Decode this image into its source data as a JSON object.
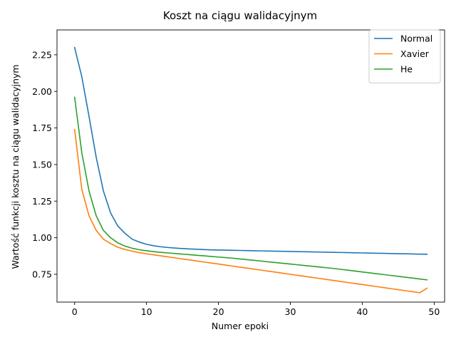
{
  "chart_data": {
    "type": "line",
    "title": "Koszt na ciągu walidacyjnym",
    "xlabel": "Numer epoki",
    "ylabel": "Wartość funkcji kosztu na ciągu walidacyjnym",
    "xlim": [
      -2.45,
      51.45
    ],
    "ylim": [
      0.56,
      2.42
    ],
    "xticks": [
      0,
      10,
      20,
      30,
      40,
      50
    ],
    "yticks": [
      0.75,
      1.0,
      1.25,
      1.5,
      1.75,
      2.0,
      2.25
    ],
    "grid": false,
    "legend_position": "upper right",
    "x": [
      0,
      1,
      2,
      3,
      4,
      5,
      6,
      7,
      8,
      9,
      10,
      11,
      12,
      13,
      14,
      15,
      16,
      17,
      18,
      19,
      20,
      21,
      22,
      23,
      24,
      25,
      26,
      27,
      28,
      29,
      30,
      31,
      32,
      33,
      34,
      35,
      36,
      37,
      38,
      39,
      40,
      41,
      42,
      43,
      44,
      45,
      46,
      47,
      48,
      49
    ],
    "series": [
      {
        "name": "Normal",
        "color": "#1f77b4",
        "values": [
          2.3,
          2.1,
          1.83,
          1.55,
          1.32,
          1.17,
          1.08,
          1.03,
          0.99,
          0.97,
          0.955,
          0.945,
          0.938,
          0.933,
          0.929,
          0.926,
          0.923,
          0.921,
          0.919,
          0.917,
          0.916,
          0.915,
          0.914,
          0.913,
          0.912,
          0.911,
          0.91,
          0.909,
          0.908,
          0.907,
          0.906,
          0.905,
          0.904,
          0.903,
          0.902,
          0.901,
          0.9,
          0.899,
          0.898,
          0.897,
          0.896,
          0.895,
          0.894,
          0.893,
          0.892,
          0.891,
          0.89,
          0.889,
          0.888,
          0.887
        ]
      },
      {
        "name": "Xavier",
        "color": "#ff7f0e",
        "values": [
          1.74,
          1.33,
          1.15,
          1.05,
          0.99,
          0.96,
          0.935,
          0.92,
          0.908,
          0.898,
          0.89,
          0.883,
          0.876,
          0.869,
          0.862,
          0.855,
          0.848,
          0.841,
          0.834,
          0.827,
          0.82,
          0.813,
          0.806,
          0.799,
          0.792,
          0.785,
          0.778,
          0.771,
          0.764,
          0.757,
          0.75,
          0.743,
          0.736,
          0.729,
          0.722,
          0.715,
          0.708,
          0.701,
          0.694,
          0.687,
          0.68,
          0.673,
          0.666,
          0.659,
          0.652,
          0.645,
          0.638,
          0.631,
          0.624,
          0.655
        ]
      },
      {
        "name": "He",
        "color": "#2ca02c",
        "values": [
          1.96,
          1.58,
          1.32,
          1.15,
          1.05,
          1.0,
          0.965,
          0.943,
          0.928,
          0.918,
          0.911,
          0.905,
          0.9,
          0.896,
          0.892,
          0.888,
          0.884,
          0.88,
          0.876,
          0.872,
          0.868,
          0.864,
          0.86,
          0.855,
          0.85,
          0.845,
          0.84,
          0.835,
          0.83,
          0.825,
          0.82,
          0.815,
          0.81,
          0.805,
          0.8,
          0.795,
          0.79,
          0.784,
          0.778,
          0.772,
          0.766,
          0.76,
          0.754,
          0.748,
          0.742,
          0.736,
          0.73,
          0.724,
          0.718,
          0.712
        ]
      }
    ]
  }
}
